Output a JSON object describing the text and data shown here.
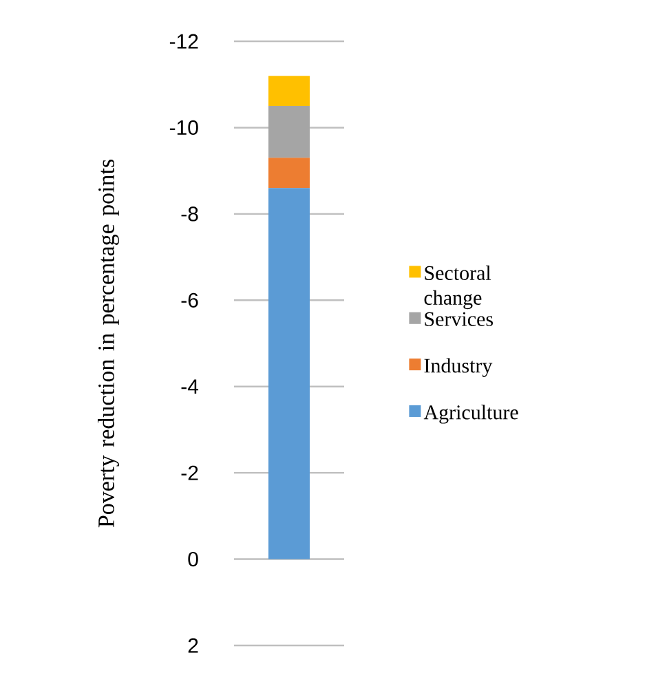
{
  "chart_data": {
    "type": "bar",
    "stacked": true,
    "ylabel": "Poverty reduction in percentage points",
    "categories": [
      null
    ],
    "series": [
      {
        "name": "Agriculture",
        "color": "#5b9bd5",
        "values": [
          -8.6
        ]
      },
      {
        "name": "Industry",
        "color": "#ed7d31",
        "values": [
          -0.7
        ]
      },
      {
        "name": "Services",
        "color": "#a5a5a5",
        "values": [
          -1.2
        ]
      },
      {
        "name": "Sectoral change",
        "color": "#ffc000",
        "values": [
          -0.7
        ]
      }
    ],
    "ylim": [
      2,
      -12
    ],
    "yticks": [
      2,
      0,
      -2,
      -4,
      -6,
      -8,
      -10,
      -12
    ],
    "grid": "y",
    "legend": "right"
  }
}
